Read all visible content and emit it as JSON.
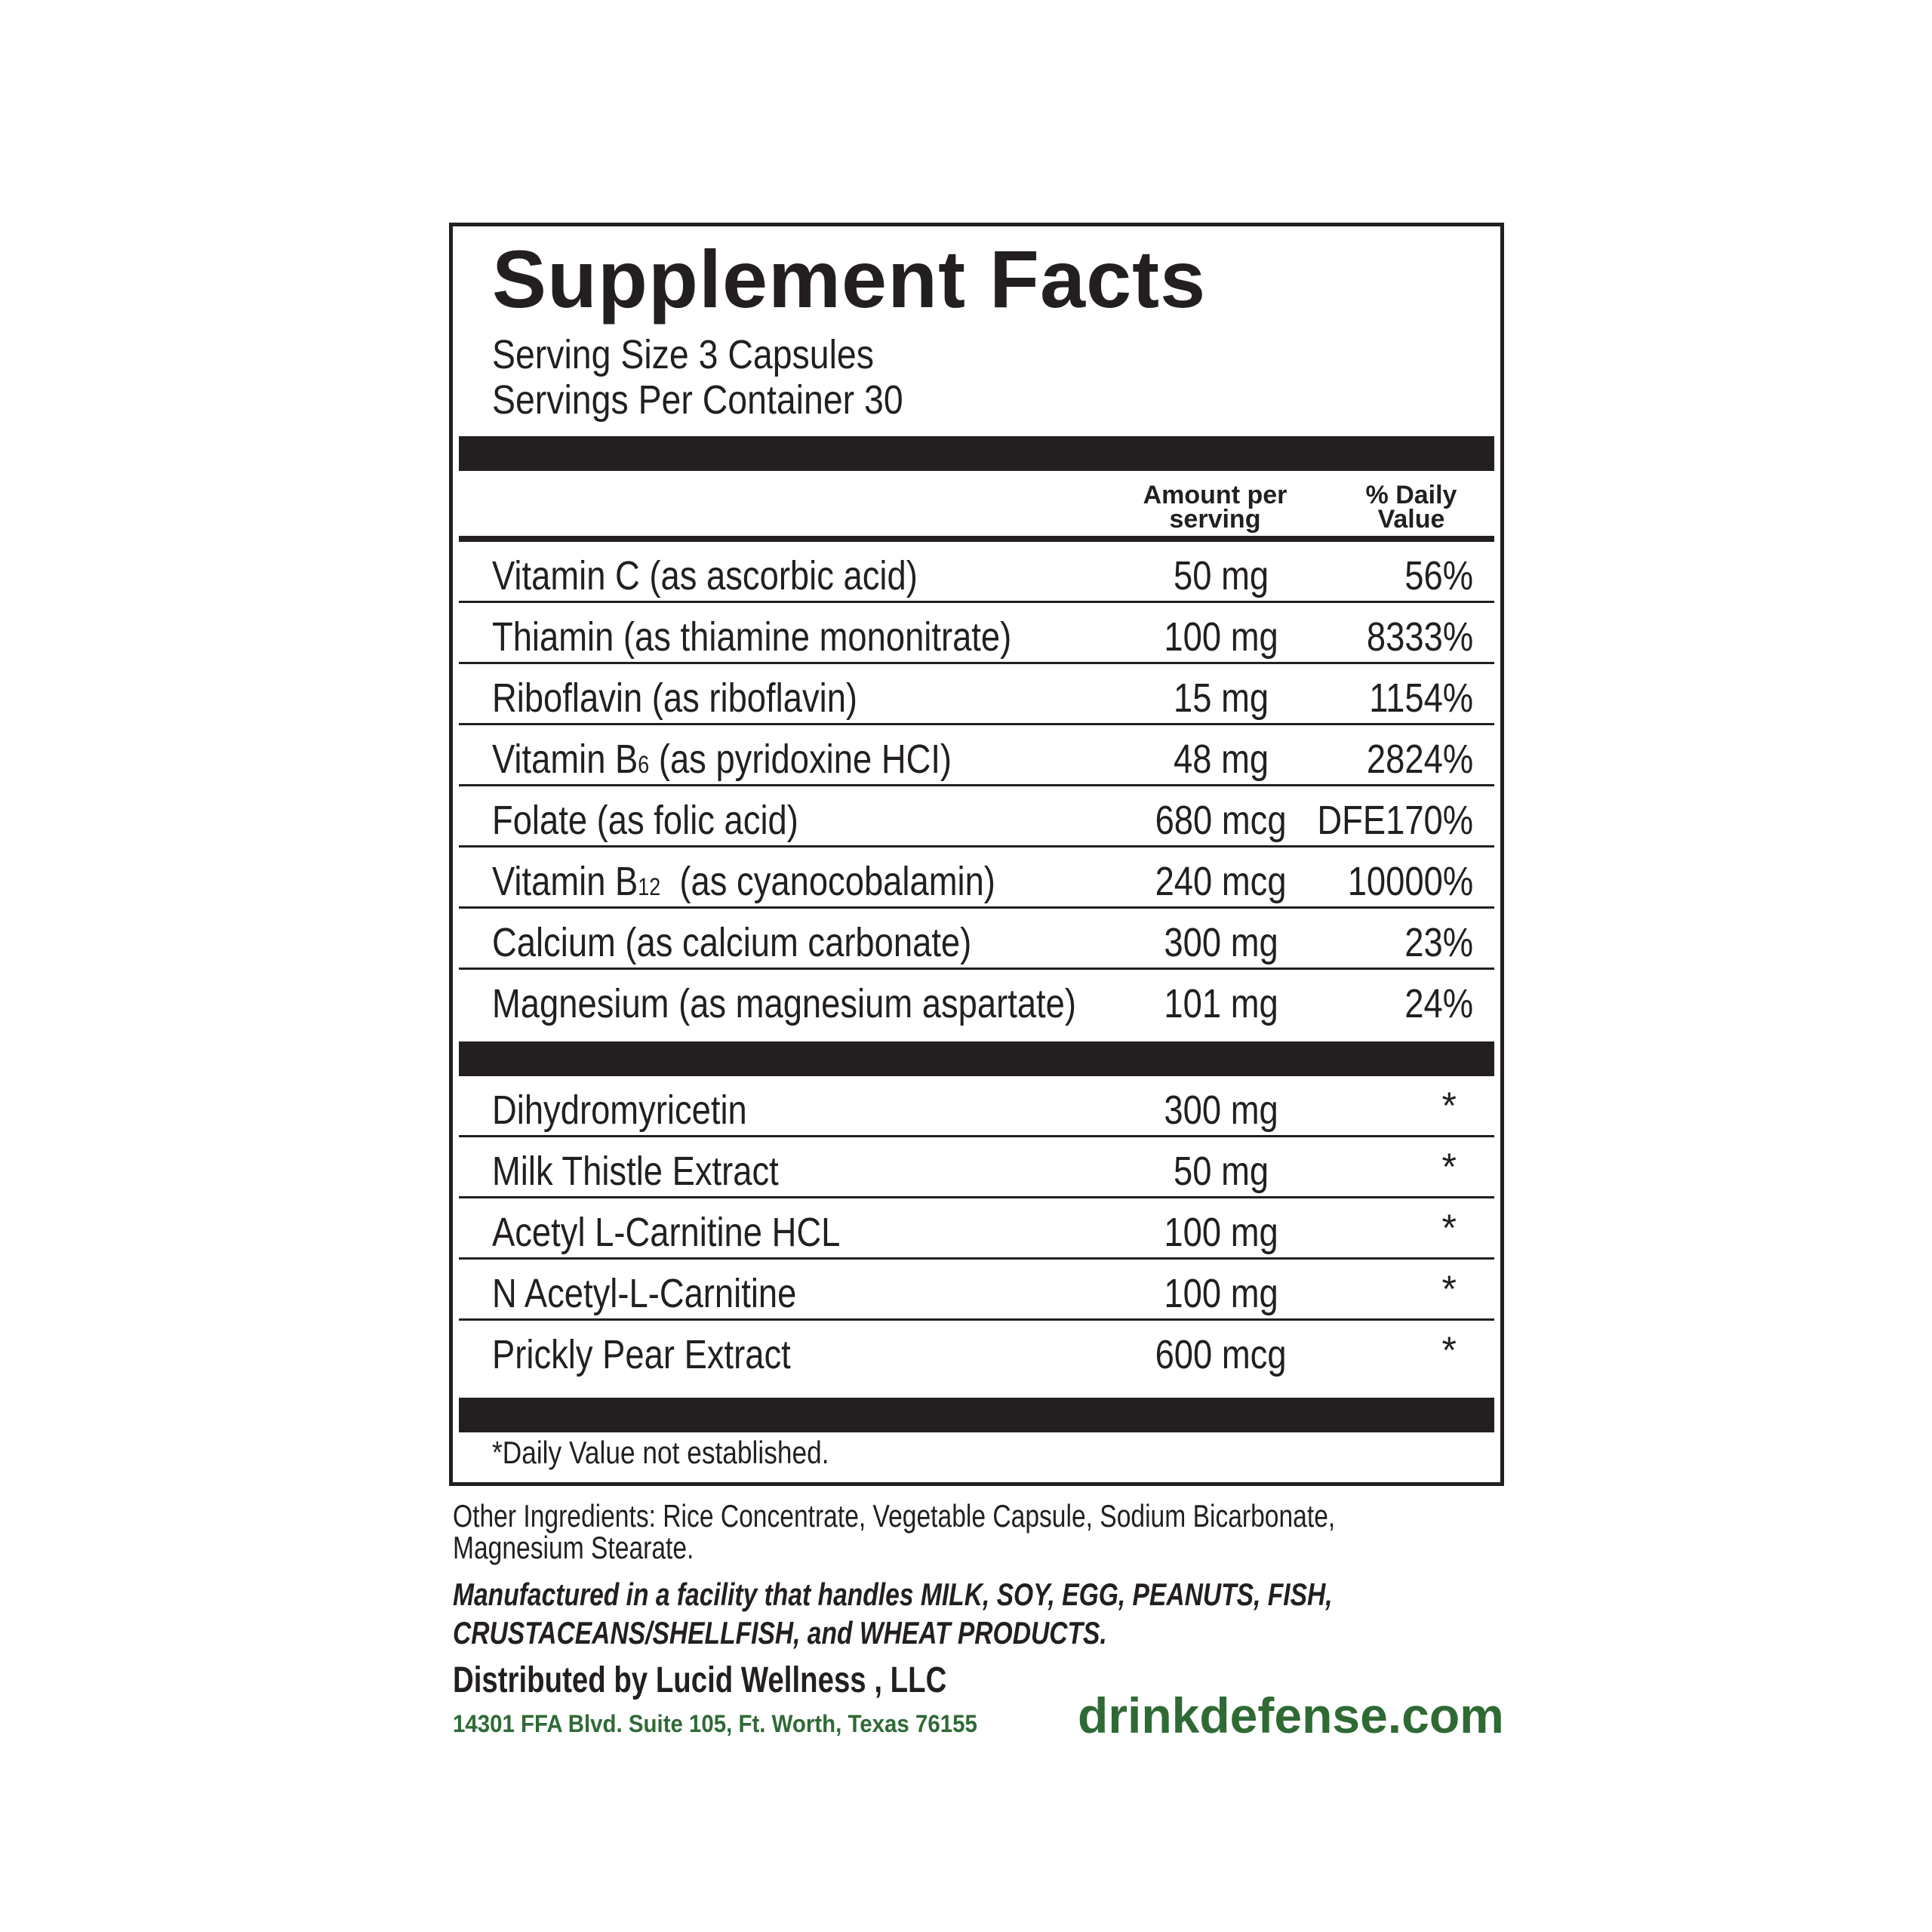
{
  "title": "Supplement Facts",
  "serving_size": "Serving Size 3 Capsules",
  "servings_per_container": "Servings Per Container 30",
  "header": {
    "amount_line1": "Amount per",
    "amount_line2": "serving",
    "dv_line1": "% Daily",
    "dv_line2": "Value"
  },
  "vitamins": [
    {
      "name": "Vitamin C (as ascorbic acid)",
      "amount": "50 mg",
      "dv": "56%"
    },
    {
      "name": "Thiamin (as thiamine mononitrate)",
      "amount": "100 mg",
      "dv": "8333%"
    },
    {
      "name": "Riboflavin (as riboflavin)",
      "amount": "15 mg",
      "dv": "1154%"
    },
    {
      "name_pre": "Vitamin B",
      "name_sub": "6",
      "name_post": " (as pyridoxine HCI)",
      "amount": "48 mg",
      "dv": "2824%"
    },
    {
      "name": "Folate (as folic acid)",
      "amount": "680 mcg",
      "dv": "DFE170%"
    },
    {
      "name_pre": "Vitamin B",
      "name_sub": "12",
      "name_post": "  (as cyanocobalamin)",
      "amount": "240 mcg",
      "dv": "10000%"
    },
    {
      "name": "Calcium (as calcium carbonate)",
      "amount": "300 mg",
      "dv": "23%"
    },
    {
      "name": "Magnesium (as magnesium aspartate)",
      "amount": "101 mg",
      "dv": "24%"
    }
  ],
  "others": [
    {
      "name": "Dihydromyricetin",
      "amount": "300 mg",
      "dv": "*"
    },
    {
      "name": "Milk Thistle Extract",
      "amount": "50 mg",
      "dv": "*"
    },
    {
      "name": "Acetyl L-Carnitine HCL",
      "amount": "100 mg",
      "dv": "*"
    },
    {
      "name": "N Acetyl-L-Carnitine",
      "amount": "100 mg",
      "dv": "*"
    },
    {
      "name": "Prickly Pear Extract",
      "amount": "600 mcg",
      "dv": "*"
    }
  ],
  "footnote": "*Daily Value not established.",
  "other_ingredients_line1": "Other Ingredients: Rice Concentrate, Vegetable Capsule, Sodium Bicarbonate,",
  "other_ingredients_line2": "Magnesium Stearate.",
  "allergen_line1": "Manufactured in a facility that handles  MILK, SOY, EGG, PEANUTS, FISH,",
  "allergen_line2": "CRUSTACEANS/SHELLFISH, and  WHEAT PRODUCTS.",
  "distributor": "Distributed by Lucid Wellness , LLC",
  "address": "14301 FFA Blvd. Suite 105, Ft. Worth, Texas 76155",
  "website": "drinkdefense.com",
  "colors": {
    "ink": "#231f20",
    "green": "#2f6a35"
  }
}
